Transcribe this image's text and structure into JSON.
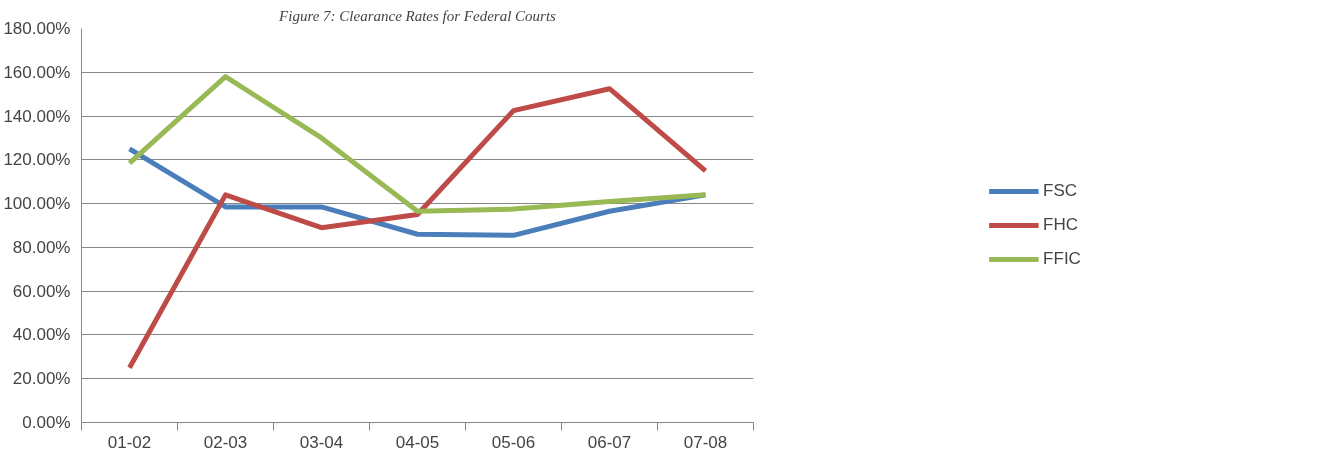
{
  "chart_data": {
    "type": "line",
    "title": "Figure 7: Clearance Rates for Federal Courts",
    "categories": [
      "01-02",
      "02-03",
      "03-04",
      "04-05",
      "05-06",
      "06-07",
      "07-08"
    ],
    "series": [
      {
        "name": "FSC",
        "color": "#4a7ebb",
        "values": [
          125,
          98.5,
          98.5,
          86,
          85.5,
          96.5,
          104
        ]
      },
      {
        "name": "FHC",
        "color": "#be4b48",
        "values": [
          25,
          104,
          89,
          95,
          142.5,
          152.5,
          115
        ]
      },
      {
        "name": "FFIC",
        "color": "#98b954",
        "values": [
          118.5,
          158,
          130,
          96.5,
          97.5,
          101,
          104
        ]
      }
    ],
    "ylim": [
      0,
      180
    ],
    "yticks": [
      {
        "value": 0,
        "label": "0.00%"
      },
      {
        "value": 20,
        "label": "20.00%"
      },
      {
        "value": 40,
        "label": "40.00%"
      },
      {
        "value": 60,
        "label": "60.00%"
      },
      {
        "value": 80,
        "label": "80.00%"
      },
      {
        "value": 100,
        "label": "100.00%"
      },
      {
        "value": 120,
        "label": "120.00%"
      },
      {
        "value": 140,
        "label": "140.00%"
      },
      {
        "value": 160,
        "label": "160.00%"
      },
      {
        "value": 180,
        "label": "180.00%"
      }
    ],
    "grid": "y",
    "legend": "right",
    "marker": "none",
    "line_style": "solid"
  }
}
